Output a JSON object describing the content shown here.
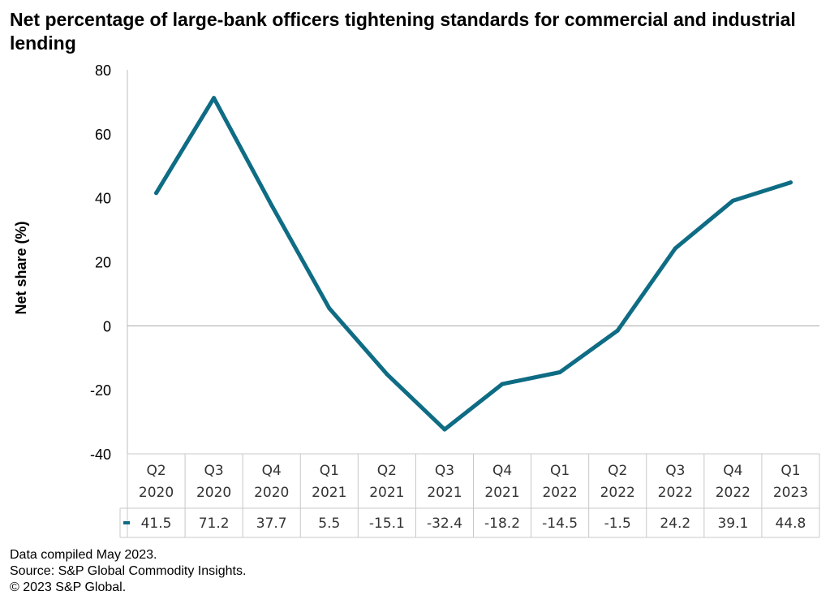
{
  "chart_data": {
    "type": "line",
    "title": "Net percentage of large-bank officers tightening standards for commercial and industrial lending",
    "ylabel": "Net share (%)",
    "xlabel": "",
    "ylim": [
      -40,
      80
    ],
    "yticks": [
      80,
      60,
      40,
      20,
      0,
      -20,
      -40
    ],
    "categories": [
      [
        "Q2",
        "2020"
      ],
      [
        "Q3",
        "2020"
      ],
      [
        "Q4",
        "2020"
      ],
      [
        "Q1",
        "2021"
      ],
      [
        "Q2",
        "2021"
      ],
      [
        "Q3",
        "2021"
      ],
      [
        "Q4",
        "2021"
      ],
      [
        "Q1",
        "2022"
      ],
      [
        "Q2",
        "2022"
      ],
      [
        "Q3",
        "2022"
      ],
      [
        "Q4",
        "2022"
      ],
      [
        "Q1",
        "2023"
      ]
    ],
    "series": [
      {
        "name": "",
        "color": "#0e6c84",
        "values": [
          41.5,
          71.2,
          37.7,
          5.5,
          -15.1,
          -32.4,
          -18.2,
          -14.5,
          -1.5,
          24.2,
          39.1,
          44.8
        ],
        "labels": [
          "41.5",
          "71.2",
          "37.7",
          "5.5",
          "-15.1",
          "-32.4",
          "-18.2",
          "-14.5",
          "-1.5",
          "24.2",
          "39.1",
          "44.8"
        ]
      }
    ],
    "legend": "data-table",
    "grid": false
  },
  "footer": {
    "line1": "Data compiled May 2023.",
    "line2": "Source: S&P Global Commodity Insights.",
    "line3": "© 2023 S&P Global."
  }
}
